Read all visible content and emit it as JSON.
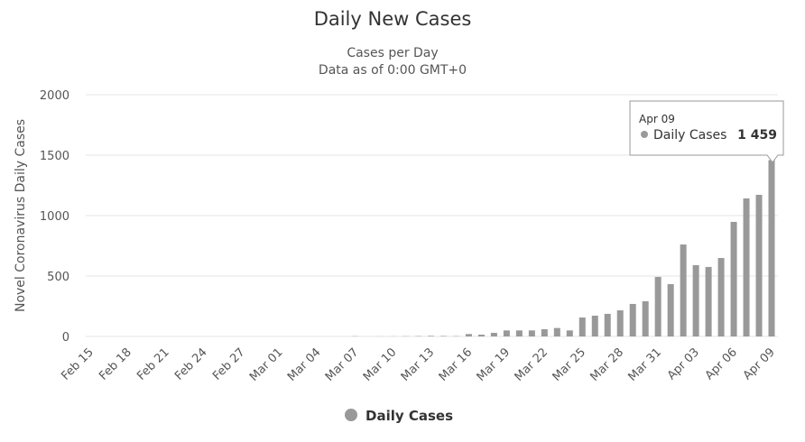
{
  "chart_data": {
    "type": "bar",
    "title": "Daily New Cases",
    "subtitle": [
      "Cases per Day",
      "Data as of 0:00 GMT+0"
    ],
    "y_label": "Novel Coronavirus Daily Cases",
    "categories": [
      "Feb 15",
      null,
      null,
      "Feb 18",
      null,
      null,
      "Feb 21",
      null,
      null,
      "Feb 24",
      null,
      null,
      "Feb 27",
      null,
      null,
      "Mar 01",
      null,
      null,
      "Mar 04",
      null,
      null,
      "Mar 07",
      null,
      null,
      "Mar 10",
      null,
      null,
      "Mar 13",
      null,
      null,
      "Mar 16",
      null,
      null,
      "Mar 19",
      null,
      null,
      "Mar 22",
      null,
      null,
      "Mar 25",
      null,
      null,
      "Mar 28",
      null,
      null,
      "Mar 31",
      null,
      null,
      "Apr 03",
      null,
      null,
      "Apr 06",
      null,
      null,
      "Apr 09"
    ],
    "series": [
      {
        "name": "Daily Cases",
        "color": "#999999",
        "values": [
          0,
          0,
          0,
          0,
          0,
          0,
          0,
          0,
          0,
          0,
          0,
          0,
          0,
          0,
          0,
          0,
          0,
          0,
          0,
          0,
          0,
          2,
          0,
          1,
          1,
          2,
          3,
          5,
          4,
          3,
          20,
          15,
          30,
          50,
          50,
          50,
          60,
          70,
          50,
          157,
          172,
          187,
          216,
          269,
          291,
          493,
          433,
          761,
          590,
          575,
          649,
          948,
          1142,
          1172,
          1459
        ]
      }
    ],
    "ylim": [
      0,
      2000
    ],
    "yticks": [
      0,
      500,
      1000,
      1500,
      2000
    ],
    "grid": true,
    "legend": "bottom"
  },
  "tooltip": {
    "title": "Apr 09",
    "series": "Daily Cases",
    "value_label": "1 459"
  }
}
